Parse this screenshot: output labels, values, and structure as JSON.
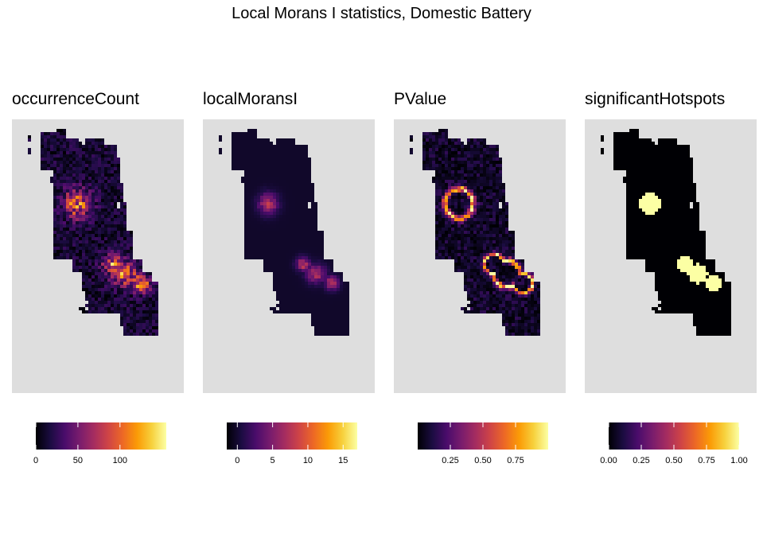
{
  "title": "Local Morans I statistics, Domestic Battery",
  "colors": {
    "panel_background": "#dedede",
    "palette": "inferno",
    "inferno_stops": [
      "#000004",
      "#1b0c41",
      "#4a0c6b",
      "#781c6d",
      "#a52c60",
      "#cf4446",
      "#ed6925",
      "#fb9b06",
      "#f7d13d",
      "#fcffa4"
    ]
  },
  "chart_data": [
    {
      "type": "heatmap",
      "title": "occurrenceCount",
      "legend": {
        "position": "bottom",
        "min": 0,
        "max": 155,
        "ticks": [
          0,
          50,
          100
        ],
        "tick_labels": [
          "0",
          "50",
          "100"
        ]
      },
      "grid": false
    },
    {
      "type": "heatmap",
      "title": "localMoransI",
      "legend": {
        "position": "bottom",
        "min": -1.5,
        "max": 17,
        "ticks": [
          0,
          5,
          10,
          15
        ],
        "tick_labels": [
          "0",
          "5",
          "10",
          "15"
        ]
      },
      "grid": false
    },
    {
      "type": "heatmap",
      "title": "PValue",
      "legend": {
        "position": "bottom",
        "min": 0,
        "max": 1,
        "ticks": [
          0.25,
          0.5,
          0.75
        ],
        "tick_labels": [
          "0.25",
          "0.50",
          "0.75"
        ]
      },
      "grid": false
    },
    {
      "type": "heatmap",
      "title": "significantHotspots",
      "legend": {
        "position": "bottom",
        "min": 0,
        "max": 1,
        "ticks": [
          0,
          0.25,
          0.5,
          0.75,
          1
        ],
        "tick_labels": [
          "0.00",
          "0.25",
          "0.50",
          "0.75",
          "1.00"
        ]
      },
      "grid": false
    }
  ]
}
